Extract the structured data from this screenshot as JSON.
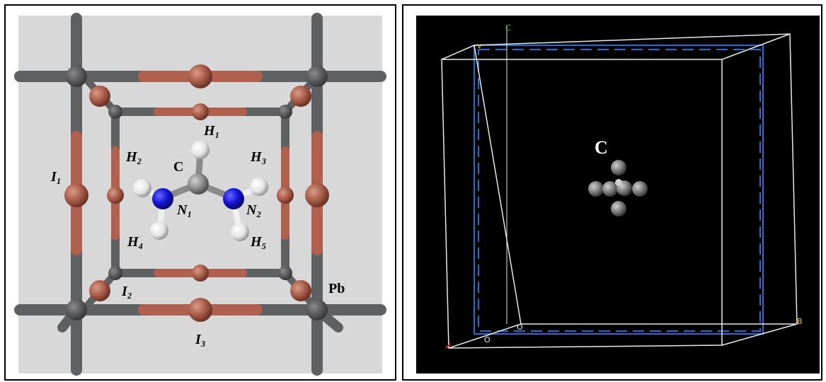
{
  "left": {
    "labels": {
      "h1": "H₁",
      "h2": "H₂",
      "h3": "H₃",
      "h4": "H₄",
      "h5": "H₅",
      "c": "C",
      "n1": "N₁",
      "n2": "N₂",
      "i1": "I₁",
      "i2": "I₂",
      "i3": "I₃",
      "pb": "Pb"
    }
  },
  "right": {
    "labels": {
      "c": "C"
    },
    "axes": {
      "c": "C",
      "a": "A",
      "b": "B",
      "o1": "O",
      "o2": "O"
    }
  },
  "colors": {
    "left_bg": "#d8d8d8",
    "right_bg": "#000000",
    "lead_rod": "#5f6062",
    "iodine": "#b0604e",
    "nitrogen": "#1515d8",
    "carbon": "#8a8a8a",
    "hydrogen": "#f0f0f0",
    "box_line": "#e8e8e8",
    "cell_line": "#1f6fd6"
  }
}
